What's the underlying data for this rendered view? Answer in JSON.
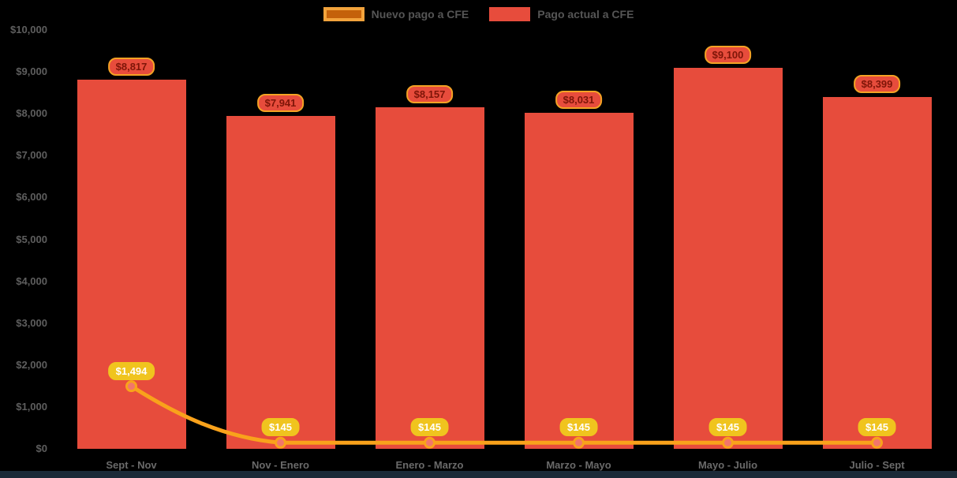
{
  "legend": {
    "items": [
      {
        "label": "Nuevo pago a CFE",
        "series_type": "line",
        "swatch_fill": "#C4610A",
        "swatch_border": "#F2A33C"
      },
      {
        "label": "Pago actual a CFE",
        "series_type": "bar",
        "swatch_fill": "#E74C3C",
        "swatch_border": "#E74C3C"
      }
    ]
  },
  "chart_data": {
    "type": "bar",
    "title": "",
    "categories": [
      "Sept - Nov",
      "Nov - Enero",
      "Enero - Marzo",
      "Marzo - Mayo",
      "Mayo - Julio",
      "Julio - Sept"
    ],
    "series": [
      {
        "name": "Pago actual a CFE",
        "type": "bar",
        "color": "#E74C3C",
        "values": [
          8817,
          7941,
          8157,
          8031,
          9100,
          8399
        ],
        "data_labels": [
          "$8,817",
          "$7,941",
          "$8,157",
          "$8,031",
          "$9,100",
          "$8,399"
        ],
        "label_style": {
          "fill": "#E74C3C",
          "border": "#F4A224",
          "text": "#7E1508"
        }
      },
      {
        "name": "Nuevo pago a CFE",
        "type": "line",
        "color": "#F9A21B",
        "marker_fill": "#F2766B",
        "marker_border": "#F9A21B",
        "values": [
          1494,
          145,
          145,
          145,
          145,
          145
        ],
        "data_labels": [
          "$1,494",
          "$145",
          "$145",
          "$145",
          "$145",
          "$145"
        ],
        "label_style": {
          "fill": "#F0C41E",
          "border": "#F0C41E",
          "text": "#FFFFFF"
        }
      }
    ],
    "ylim": [
      0,
      10000
    ],
    "ytick_step": 1000,
    "ytick_labels": [
      "$0",
      "$1,000",
      "$2,000",
      "$3,000",
      "$4,000",
      "$5,000",
      "$6,000",
      "$7,000",
      "$8,000",
      "$9,000",
      "$10,000"
    ],
    "legend_position": "top",
    "grid": false,
    "background": "#000000"
  },
  "colors": {
    "background": "#000000",
    "y_axis_text": "#5E5E5E",
    "x_axis_text": "#6A6A6A",
    "legend_text": "#555555",
    "bottom_strip": "#1B2A38"
  }
}
